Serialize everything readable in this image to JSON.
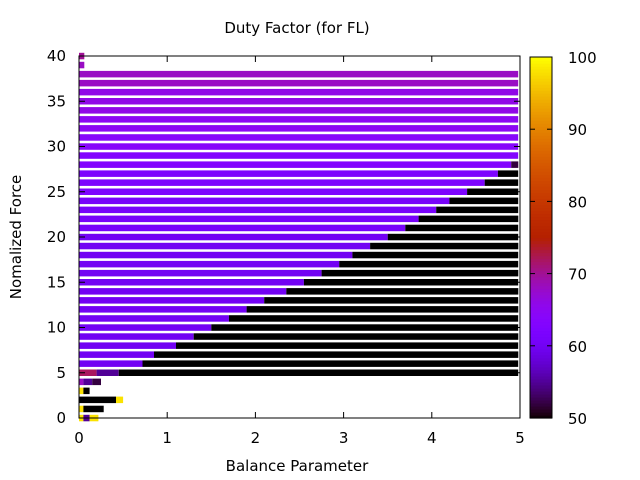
{
  "chart_data": {
    "type": "heatmap",
    "title": "Duty Factor (for FL)",
    "xlabel": "Balance Parameter",
    "ylabel": "Nomalized Force",
    "xlim": [
      0,
      5
    ],
    "ylim": [
      0,
      40
    ],
    "x_ticks": [
      "0",
      "1",
      "2",
      "3",
      "4",
      "5"
    ],
    "y_ticks": [
      "0",
      "5",
      "10",
      "15",
      "20",
      "25",
      "30",
      "35",
      "40"
    ],
    "colorbar": {
      "range": [
        50,
        100
      ],
      "ticks": [
        "50",
        "60",
        "70",
        "80",
        "90",
        "100"
      ],
      "palette": "gnuplot-pm3d-black-blue-purple-red-yellow"
    },
    "grid": false,
    "legend": "none",
    "rows": [
      {
        "force": 40,
        "bands": [
          [
            0.0,
            0.06,
            70
          ]
        ]
      },
      {
        "force": 39,
        "bands": [
          [
            0.0,
            0.06,
            68
          ]
        ]
      },
      {
        "force": 38,
        "bands": [
          [
            0.0,
            4.98,
            68
          ]
        ]
      },
      {
        "force": 37,
        "bands": [
          [
            0.0,
            4.98,
            68
          ]
        ]
      },
      {
        "force": 36,
        "bands": [
          [
            0.0,
            4.98,
            66
          ]
        ]
      },
      {
        "force": 35,
        "bands": [
          [
            0.0,
            4.98,
            66
          ]
        ]
      },
      {
        "force": 34,
        "bands": [
          [
            0.0,
            4.98,
            66
          ]
        ]
      },
      {
        "force": 33,
        "bands": [
          [
            0.0,
            4.98,
            65
          ]
        ]
      },
      {
        "force": 32,
        "bands": [
          [
            0.0,
            4.98,
            65
          ]
        ]
      },
      {
        "force": 31,
        "bands": [
          [
            0.0,
            4.98,
            64
          ]
        ]
      },
      {
        "force": 30,
        "bands": [
          [
            0.0,
            4.98,
            64
          ]
        ]
      },
      {
        "force": 29,
        "bands": [
          [
            0.0,
            4.98,
            63
          ]
        ]
      },
      {
        "force": 28,
        "bands": [
          [
            0.0,
            4.9,
            63
          ],
          [
            4.9,
            4.98,
            52
          ]
        ]
      },
      {
        "force": 27,
        "bands": [
          [
            0.0,
            4.75,
            62
          ],
          [
            4.75,
            4.98,
            50
          ]
        ]
      },
      {
        "force": 26,
        "bands": [
          [
            0.0,
            4.6,
            62
          ],
          [
            4.6,
            4.98,
            50
          ]
        ]
      },
      {
        "force": 25,
        "bands": [
          [
            0.0,
            4.4,
            62
          ],
          [
            4.4,
            4.98,
            50
          ]
        ]
      },
      {
        "force": 24,
        "bands": [
          [
            0.0,
            4.2,
            61
          ],
          [
            4.2,
            4.98,
            50
          ]
        ]
      },
      {
        "force": 23,
        "bands": [
          [
            0.0,
            4.05,
            61
          ],
          [
            4.05,
            4.98,
            50
          ]
        ]
      },
      {
        "force": 22,
        "bands": [
          [
            0.0,
            3.85,
            61
          ],
          [
            3.85,
            4.98,
            50
          ]
        ]
      },
      {
        "force": 21,
        "bands": [
          [
            0.0,
            3.7,
            61
          ],
          [
            3.7,
            4.98,
            50
          ]
        ]
      },
      {
        "force": 20,
        "bands": [
          [
            0.0,
            3.5,
            60
          ],
          [
            3.5,
            4.98,
            50
          ]
        ]
      },
      {
        "force": 19,
        "bands": [
          [
            0.0,
            3.3,
            60
          ],
          [
            3.3,
            4.98,
            50
          ]
        ]
      },
      {
        "force": 18,
        "bands": [
          [
            0.0,
            3.1,
            60
          ],
          [
            3.1,
            4.98,
            50
          ]
        ]
      },
      {
        "force": 17,
        "bands": [
          [
            0.0,
            2.95,
            60
          ],
          [
            2.95,
            4.98,
            50
          ]
        ]
      },
      {
        "force": 16,
        "bands": [
          [
            0.0,
            2.75,
            60
          ],
          [
            2.75,
            4.98,
            50
          ]
        ]
      },
      {
        "force": 15,
        "bands": [
          [
            0.0,
            2.55,
            60
          ],
          [
            2.55,
            4.98,
            50
          ]
        ]
      },
      {
        "force": 14,
        "bands": [
          [
            0.0,
            2.35,
            60
          ],
          [
            2.35,
            4.98,
            50
          ]
        ]
      },
      {
        "force": 13,
        "bands": [
          [
            0.0,
            2.1,
            60
          ],
          [
            2.1,
            4.98,
            50
          ]
        ]
      },
      {
        "force": 12,
        "bands": [
          [
            0.0,
            1.9,
            60
          ],
          [
            1.9,
            4.98,
            50
          ]
        ]
      },
      {
        "force": 11,
        "bands": [
          [
            0.0,
            1.7,
            60
          ],
          [
            1.7,
            4.98,
            50
          ]
        ]
      },
      {
        "force": 10,
        "bands": [
          [
            0.0,
            1.5,
            60
          ],
          [
            1.5,
            4.98,
            50
          ]
        ]
      },
      {
        "force": 9,
        "bands": [
          [
            0.0,
            1.3,
            60
          ],
          [
            1.3,
            4.98,
            50
          ]
        ]
      },
      {
        "force": 8,
        "bands": [
          [
            0.0,
            1.1,
            60
          ],
          [
            1.1,
            4.98,
            50
          ]
        ]
      },
      {
        "force": 7,
        "bands": [
          [
            0.0,
            0.85,
            60
          ],
          [
            0.85,
            4.98,
            50
          ]
        ]
      },
      {
        "force": 6,
        "bands": [
          [
            0.0,
            0.72,
            60
          ],
          [
            0.72,
            4.98,
            50
          ]
        ]
      },
      {
        "force": 5,
        "bands": [
          [
            0.0,
            0.2,
            72
          ],
          [
            0.2,
            0.45,
            55
          ],
          [
            0.45,
            4.98,
            50
          ]
        ]
      },
      {
        "force": 4,
        "bands": [
          [
            0.0,
            0.05,
            68
          ],
          [
            0.05,
            0.15,
            55
          ],
          [
            0.15,
            0.25,
            52
          ]
        ]
      },
      {
        "force": 3,
        "bands": [
          [
            0.0,
            0.05,
            98
          ],
          [
            0.05,
            0.12,
            50
          ]
        ]
      },
      {
        "force": 2,
        "bands": [
          [
            0.0,
            0.42,
            50
          ],
          [
            0.42,
            0.5,
            98
          ]
        ]
      },
      {
        "force": 1,
        "bands": [
          [
            0.0,
            0.05,
            98
          ],
          [
            0.05,
            0.28,
            50
          ]
        ]
      },
      {
        "force": 0,
        "bands": [
          [
            0.0,
            0.05,
            98
          ],
          [
            0.05,
            0.12,
            55
          ],
          [
            0.12,
            0.22,
            98
          ]
        ]
      }
    ]
  }
}
